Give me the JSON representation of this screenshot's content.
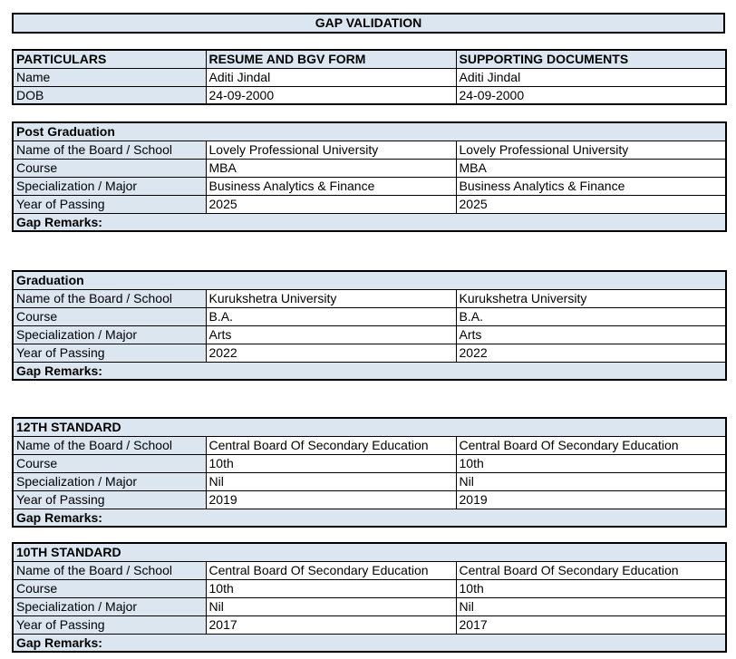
{
  "title": "GAP VALIDATION",
  "colors": {
    "header_fill": "#dce6f1",
    "border": "#000000",
    "page_background": "#ffffff"
  },
  "particulars_table": {
    "headers": [
      "PARTICULARS",
      "RESUME AND BGV FORM",
      "SUPPORTING DOCUMENTS"
    ],
    "rows": [
      {
        "label": "Name",
        "resume": "Aditi Jindal",
        "supporting": "Aditi Jindal"
      },
      {
        "label": "DOB",
        "resume": "24-09-2000",
        "supporting": "24-09-2000"
      }
    ]
  },
  "sections": [
    {
      "title": "Post Graduation",
      "rows": [
        {
          "label": "Name of the Board / School",
          "resume": "Lovely Professional University",
          "supporting": "Lovely Professional University"
        },
        {
          "label": "Course",
          "resume": "MBA",
          "supporting": "MBA"
        },
        {
          "label": "Specialization / Major",
          "resume": "Business Analytics & Finance",
          "supporting": "Business Analytics & Finance"
        },
        {
          "label": "Year of Passing",
          "resume": "2025",
          "supporting": "2025"
        }
      ],
      "gap_remarks": "Gap Remarks:"
    },
    {
      "title": "Graduation",
      "rows": [
        {
          "label": "Name of the Board / School",
          "resume": "Kurukshetra University",
          "supporting": "Kurukshetra University"
        },
        {
          "label": "Course",
          "resume": "B.A.",
          "supporting": "B.A."
        },
        {
          "label": "Specialization / Major",
          "resume": "Arts",
          "supporting": "Arts"
        },
        {
          "label": "Year of Passing",
          "resume": "2022",
          "supporting": "2022"
        }
      ],
      "gap_remarks": "Gap Remarks:"
    },
    {
      "title": "12TH STANDARD",
      "rows": [
        {
          "label": "Name of the Board / School",
          "resume": "Central Board Of Secondary Education",
          "supporting": "Central Board Of Secondary Education"
        },
        {
          "label": "Course",
          "resume": "10th",
          "supporting": "10th"
        },
        {
          "label": "Specialization / Major",
          "resume": "Nil",
          "supporting": "Nil"
        },
        {
          "label": "Year of Passing",
          "resume": "2019",
          "supporting": "2019"
        }
      ],
      "gap_remarks": "Gap Remarks:"
    },
    {
      "title": "10TH STANDARD",
      "rows": [
        {
          "label": "Name of the Board / School",
          "resume": "Central Board Of Secondary Education",
          "supporting": "Central Board Of Secondary Education"
        },
        {
          "label": "Course",
          "resume": "10th",
          "supporting": "10th"
        },
        {
          "label": "Specialization / Major",
          "resume": "Nil",
          "supporting": "Nil"
        },
        {
          "label": "Year of Passing",
          "resume": "2017",
          "supporting": "2017"
        }
      ],
      "gap_remarks": "Gap Remarks:"
    }
  ]
}
